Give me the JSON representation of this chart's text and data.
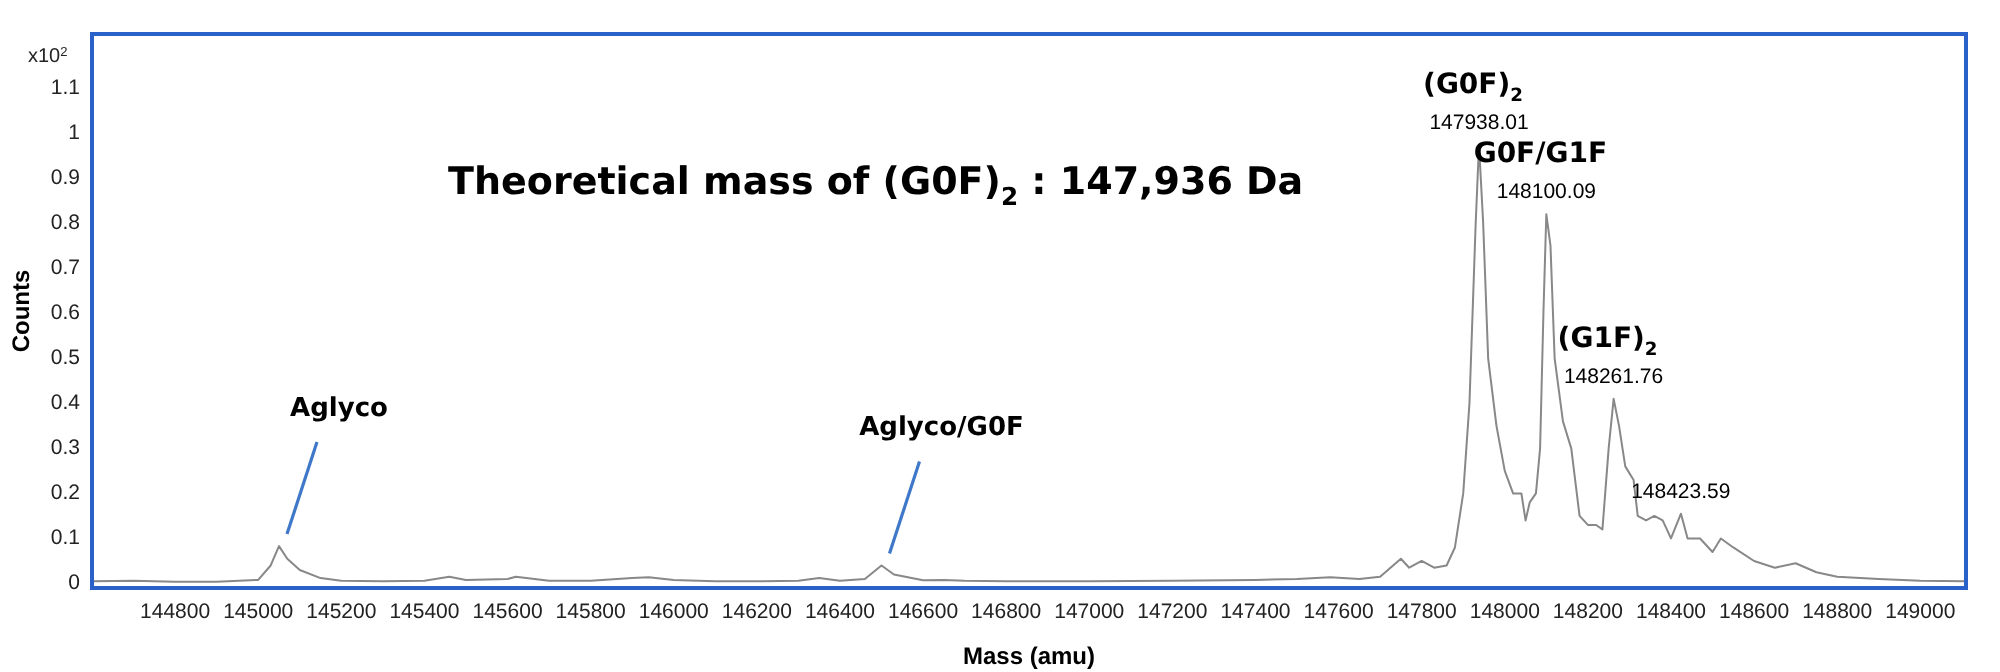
{
  "chart_data": {
    "type": "line",
    "title": "Theoretical mass of (G0F)$_{2}$ : 147,936 Da",
    "xlabel": "Mass (amu)",
    "ylabel": "Counts",
    "x": [
      144600,
      144700,
      144800,
      144900,
      145000,
      145030,
      145050,
      145070,
      145100,
      145150,
      145200,
      145300,
      145400,
      145460,
      145500,
      145600,
      145620,
      145700,
      145800,
      145900,
      145940,
      146000,
      146100,
      146200,
      146300,
      146350,
      146400,
      146460,
      146500,
      146530,
      146600,
      146650,
      146700,
      146800,
      147000,
      147200,
      147400,
      147500,
      147580,
      147650,
      147700,
      147750,
      147770,
      147800,
      147830,
      147860,
      147880,
      147900,
      147915,
      147930,
      147938,
      147948,
      147960,
      147980,
      148000,
      148020,
      148040,
      148050,
      148060,
      148075,
      148085,
      148093,
      148100,
      148110,
      148120,
      148140,
      148160,
      148180,
      148200,
      148220,
      148235,
      148250,
      148262,
      148275,
      148290,
      148310,
      148320,
      148340,
      148360,
      148380,
      148400,
      148424,
      148440,
      148470,
      148500,
      148520,
      148550,
      148600,
      148650,
      148700,
      148750,
      148800,
      148900,
      149000,
      149110
    ],
    "series": [
      {
        "color": "#888888",
        "values": [
          0.005,
          0.006,
          0.004,
          0.004,
          0.008,
          0.04,
          0.083,
          0.055,
          0.03,
          0.012,
          0.006,
          0.005,
          0.006,
          0.015,
          0.008,
          0.01,
          0.015,
          0.006,
          0.006,
          0.012,
          0.014,
          0.008,
          0.005,
          0.005,
          0.006,
          0.012,
          0.006,
          0.01,
          0.04,
          0.02,
          0.007,
          0.008,
          0.006,
          0.005,
          0.005,
          0.006,
          0.008,
          0.01,
          0.014,
          0.01,
          0.015,
          0.055,
          0.035,
          0.05,
          0.035,
          0.04,
          0.08,
          0.2,
          0.4,
          0.8,
          0.974,
          0.8,
          0.5,
          0.35,
          0.25,
          0.2,
          0.2,
          0.14,
          0.18,
          0.2,
          0.3,
          0.6,
          0.82,
          0.75,
          0.5,
          0.36,
          0.3,
          0.15,
          0.13,
          0.13,
          0.12,
          0.3,
          0.41,
          0.35,
          0.26,
          0.23,
          0.15,
          0.14,
          0.15,
          0.14,
          0.1,
          0.155,
          0.1,
          0.1,
          0.07,
          0.1,
          0.08,
          0.05,
          0.035,
          0.045,
          0.025,
          0.015,
          0.01,
          0.006,
          0.005
        ]
      }
    ],
    "xlim": [
      144600,
      149110
    ],
    "xticks": [
      144800,
      145000,
      145200,
      145400,
      145600,
      145800,
      146000,
      146200,
      146400,
      146600,
      146800,
      147000,
      147200,
      147400,
      147600,
      147800,
      148000,
      148200,
      148400,
      148600,
      148800,
      149000
    ],
    "ylim": [
      -0.01,
      1.22
    ],
    "yticks": [
      0,
      0.1,
      0.2,
      0.3,
      0.4,
      0.5,
      0.6,
      0.7,
      0.8,
      0.9,
      1,
      1.1
    ],
    "grid": false,
    "legend": false,
    "marker": "none",
    "line_style": "solid",
    "annotations": [
      "x10$^{2}$",
      {
        "text": "147938.01",
        "x": 147938.01,
        "y": 0.974
      },
      {
        "text": "(G0F)$_{2}$",
        "x": 147938.01,
        "y": 0.974
      },
      {
        "text": "148100.09",
        "x": 148100.09,
        "y": 0.82
      },
      {
        "text": "G0F/G1F",
        "x": 148100.09,
        "y": 0.82
      },
      {
        "text": "148261.76",
        "x": 148261.76,
        "y": 0.41
      },
      {
        "text": "(G1F)$_{2}$",
        "x": 148261.76,
        "y": 0.41
      },
      {
        "text": "148423.59",
        "x": 148423.59,
        "y": 0.155
      },
      {
        "text": "Aglyco",
        "x": 145050,
        "y": 0.083
      },
      {
        "text": "Aglyco/G0F",
        "x": 146500,
        "y": 0.04
      }
    ]
  }
}
